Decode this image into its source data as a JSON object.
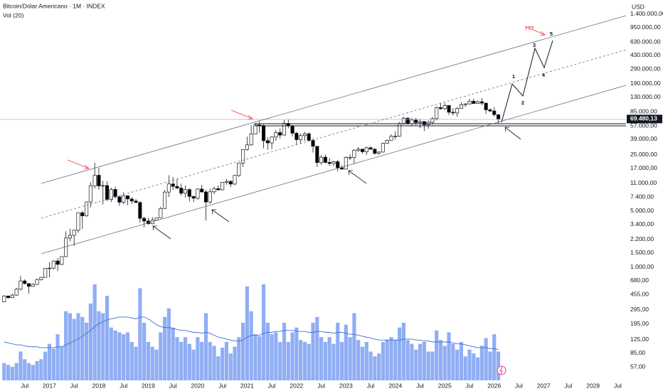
{
  "chart_data": {
    "type": "candlestick",
    "title": "Bitcoin/Dólar Americano · 1M · INDEX",
    "currency": "USD",
    "yscale": "log",
    "ylim": [
      39,
      2100000
    ],
    "yticks": [
      {
        "value": 1400000,
        "label": "1.400.000,00"
      },
      {
        "value": 950000,
        "label": "950.000,00"
      },
      {
        "value": 630000,
        "label": "630.000,00"
      },
      {
        "value": 430000,
        "label": "430.000,00"
      },
      {
        "value": 290000,
        "label": "290.000,00"
      },
      {
        "value": 190000,
        "label": "190.000,00"
      },
      {
        "value": 130000,
        "label": "130.000,00"
      },
      {
        "value": 85000,
        "label": "85.000,00"
      },
      {
        "value": 57000,
        "label": "57.000,00"
      },
      {
        "value": 39000,
        "label": "39.000,00"
      },
      {
        "value": 25000,
        "label": "25.000,00"
      },
      {
        "value": 17000,
        "label": "17.000,00"
      },
      {
        "value": 11000,
        "label": "11.000,00"
      },
      {
        "value": 7400,
        "label": "7.400,00"
      },
      {
        "value": 5000,
        "label": "5.000,00"
      },
      {
        "value": 3400,
        "label": "3.400,00"
      },
      {
        "value": 2200,
        "label": "2.200,00"
      },
      {
        "value": 1500,
        "label": "1.500,00"
      },
      {
        "value": 1000,
        "label": "1.000,00"
      },
      {
        "value": 680,
        "label": "680,00"
      },
      {
        "value": 455,
        "label": "455,00"
      },
      {
        "value": 295,
        "label": "295,00"
      },
      {
        "value": 195,
        "label": "195,00"
      },
      {
        "value": 125,
        "label": "125,00"
      },
      {
        "value": 85,
        "label": "85,00"
      },
      {
        "value": 57,
        "label": "57,00"
      }
    ],
    "xlim": [
      "2016-01",
      "2028-09"
    ],
    "xticks": [
      {
        "value": "2016-07",
        "label": "Jul"
      },
      {
        "value": "2017-01",
        "label": "2017"
      },
      {
        "value": "2017-07",
        "label": "Jul"
      },
      {
        "value": "2018-01",
        "label": "2018"
      },
      {
        "value": "2018-07",
        "label": "Jul"
      },
      {
        "value": "2019-01",
        "label": "2019"
      },
      {
        "value": "2019-07",
        "label": "Jul"
      },
      {
        "value": "2020-01",
        "label": "2020"
      },
      {
        "value": "2020-07",
        "label": "Jul"
      },
      {
        "value": "2021-01",
        "label": "2021"
      },
      {
        "value": "2021-07",
        "label": "Jul"
      },
      {
        "value": "2022-01",
        "label": "2022"
      },
      {
        "value": "2022-07",
        "label": "Jul"
      },
      {
        "value": "2023-01",
        "label": "2023"
      },
      {
        "value": "2023-07",
        "label": "Jul"
      },
      {
        "value": "2024-01",
        "label": "2024"
      },
      {
        "value": "2024-07",
        "label": "Jul"
      },
      {
        "value": "2025-01",
        "label": "2025"
      },
      {
        "value": "2025-07",
        "label": "Jul"
      },
      {
        "value": "2026-01",
        "label": "2026"
      },
      {
        "value": "2026-07",
        "label": "Jul"
      },
      {
        "value": "2027-01",
        "label": "2027"
      },
      {
        "value": "2027-07",
        "label": "Jul"
      },
      {
        "value": "2028-01",
        "label": "2028"
      },
      {
        "value": "2028-07",
        "label": "Jul"
      }
    ],
    "up_color": "#ffffff",
    "down_color": "#000000",
    "x": [
      "2016-02",
      "2016-03",
      "2016-04",
      "2016-05",
      "2016-06",
      "2016-07",
      "2016-08",
      "2016-09",
      "2016-10",
      "2016-11",
      "2016-12",
      "2017-01",
      "2017-02",
      "2017-03",
      "2017-04",
      "2017-05",
      "2017-06",
      "2017-07",
      "2017-08",
      "2017-09",
      "2017-10",
      "2017-11",
      "2017-12",
      "2018-01",
      "2018-02",
      "2018-03",
      "2018-04",
      "2018-05",
      "2018-06",
      "2018-07",
      "2018-08",
      "2018-09",
      "2018-10",
      "2018-11",
      "2018-12",
      "2019-01",
      "2019-02",
      "2019-03",
      "2019-04",
      "2019-05",
      "2019-06",
      "2019-07",
      "2019-08",
      "2019-09",
      "2019-10",
      "2019-11",
      "2019-12",
      "2020-01",
      "2020-02",
      "2020-03",
      "2020-04",
      "2020-05",
      "2020-06",
      "2020-07",
      "2020-08",
      "2020-09",
      "2020-10",
      "2020-11",
      "2020-12",
      "2021-01",
      "2021-02",
      "2021-03",
      "2021-04",
      "2021-05",
      "2021-06",
      "2021-07",
      "2021-08",
      "2021-09",
      "2021-10",
      "2021-11",
      "2021-12",
      "2022-01",
      "2022-02",
      "2022-03",
      "2022-04",
      "2022-05",
      "2022-06",
      "2022-07",
      "2022-08",
      "2022-09",
      "2022-10",
      "2022-11",
      "2022-12",
      "2023-01",
      "2023-02",
      "2023-03",
      "2023-04",
      "2023-05",
      "2023-06",
      "2023-07",
      "2023-08",
      "2023-09",
      "2023-10",
      "2023-11",
      "2023-12",
      "2024-01",
      "2024-02",
      "2024-03",
      "2024-04",
      "2024-05",
      "2024-06",
      "2024-07",
      "2024-08",
      "2024-09",
      "2024-10",
      "2024-11",
      "2024-12",
      "2025-01",
      "2025-02",
      "2025-03",
      "2025-04",
      "2025-05",
      "2025-06",
      "2025-07",
      "2025-08",
      "2025-09",
      "2025-10",
      "2025-11",
      "2025-12",
      "2026-01",
      "2026-02"
    ],
    "ohlc": [
      [
        369,
        448,
        365,
        437
      ],
      [
        437,
        440,
        406,
        416
      ],
      [
        416,
        467,
        414,
        448
      ],
      [
        448,
        552,
        437,
        531
      ],
      [
        531,
        780,
        511,
        673
      ],
      [
        673,
        704,
        605,
        624
      ],
      [
        624,
        626,
        467,
        575
      ],
      [
        575,
        628,
        571,
        609
      ],
      [
        609,
        720,
        603,
        700
      ],
      [
        700,
        757,
        680,
        745
      ],
      [
        745,
        975,
        742,
        964
      ],
      [
        964,
        1150,
        745,
        970
      ],
      [
        970,
        1210,
        930,
        1190
      ],
      [
        1190,
        1290,
        890,
        1080
      ],
      [
        1080,
        1350,
        1060,
        1350
      ],
      [
        1350,
        2790,
        1330,
        2300
      ],
      [
        2300,
        3000,
        2100,
        2480
      ],
      [
        2480,
        2920,
        1830,
        2870
      ],
      [
        2870,
        4750,
        2670,
        4740
      ],
      [
        4740,
        5000,
        2970,
        4340
      ],
      [
        4340,
        6470,
        4230,
        6470
      ],
      [
        6470,
        11400,
        5520,
        10230
      ],
      [
        10230,
        19900,
        9500,
        13880
      ],
      [
        13880,
        17200,
        9200,
        10220
      ],
      [
        10220,
        11800,
        6000,
        10330
      ],
      [
        10330,
        11700,
        6600,
        6930
      ],
      [
        6930,
        9750,
        6450,
        9240
      ],
      [
        9240,
        9990,
        7080,
        7490
      ],
      [
        7490,
        7760,
        5780,
        6400
      ],
      [
        6400,
        8500,
        6070,
        7730
      ],
      [
        7730,
        7760,
        5880,
        7040
      ],
      [
        7040,
        7400,
        6100,
        6630
      ],
      [
        6630,
        7000,
        6200,
        6370
      ],
      [
        6370,
        6580,
        3550,
        4040
      ],
      [
        4040,
        4240,
        3120,
        3740
      ],
      [
        3740,
        4110,
        3350,
        3460
      ],
      [
        3460,
        4200,
        3390,
        3830
      ],
      [
        3830,
        4130,
        3780,
        4110
      ],
      [
        4110,
        5640,
        4090,
        5350
      ],
      [
        5350,
        9090,
        5330,
        8570
      ],
      [
        8570,
        13880,
        7460,
        10820
      ],
      [
        10820,
        13200,
        9090,
        10080
      ],
      [
        10080,
        12330,
        9330,
        9600
      ],
      [
        9600,
        10900,
        7710,
        8290
      ],
      [
        8290,
        10370,
        7300,
        9200
      ],
      [
        9200,
        9510,
        6530,
        7550
      ],
      [
        7550,
        7740,
        6430,
        7190
      ],
      [
        7190,
        9580,
        6870,
        9350
      ],
      [
        9350,
        10500,
        8450,
        8600
      ],
      [
        8600,
        9170,
        3800,
        6440
      ],
      [
        6440,
        9460,
        6150,
        8630
      ],
      [
        8630,
        10070,
        8120,
        9450
      ],
      [
        9450,
        10380,
        8930,
        9140
      ],
      [
        9140,
        11440,
        8990,
        11350
      ],
      [
        11350,
        12470,
        10530,
        11650
      ],
      [
        11650,
        12070,
        9880,
        10780
      ],
      [
        10780,
        14100,
        10430,
        13800
      ],
      [
        13800,
        19860,
        13200,
        19700
      ],
      [
        19700,
        29300,
        17570,
        28990
      ],
      [
        28990,
        41950,
        28130,
        33110
      ],
      [
        33110,
        58350,
        32300,
        45140
      ],
      [
        45140,
        61780,
        45000,
        58790
      ],
      [
        58790,
        64850,
        47040,
        57700
      ],
      [
        57700,
        59600,
        30000,
        37300
      ],
      [
        37300,
        41330,
        28800,
        35040
      ],
      [
        35040,
        42400,
        29280,
        41460
      ],
      [
        41460,
        50500,
        37330,
        47130
      ],
      [
        47130,
        52920,
        39600,
        43820
      ],
      [
        43820,
        67000,
        43290,
        61300
      ],
      [
        61300,
        69000,
        53250,
        57000
      ],
      [
        57000,
        59040,
        42000,
        46300
      ],
      [
        46300,
        47990,
        32900,
        38480
      ],
      [
        38480,
        45800,
        34320,
        43190
      ],
      [
        43190,
        48240,
        37160,
        45540
      ],
      [
        45540,
        47440,
        37700,
        37640
      ],
      [
        37640,
        40000,
        26700,
        31800
      ],
      [
        31800,
        31990,
        17600,
        19930
      ],
      [
        19930,
        24670,
        18780,
        23300
      ],
      [
        23300,
        25200,
        19550,
        20050
      ],
      [
        20050,
        22800,
        18150,
        19430
      ],
      [
        19430,
        20990,
        18190,
        20490
      ],
      [
        20490,
        21470,
        15480,
        17170
      ],
      [
        17170,
        18400,
        16260,
        16540
      ],
      [
        16540,
        23960,
        16500,
        23140
      ],
      [
        23140,
        25250,
        21400,
        23150
      ],
      [
        23150,
        29200,
        19550,
        28480
      ],
      [
        28480,
        31000,
        26940,
        29250
      ],
      [
        29250,
        29820,
        25810,
        27220
      ],
      [
        27220,
        31430,
        24800,
        30480
      ],
      [
        30480,
        31800,
        28860,
        29230
      ],
      [
        29230,
        30240,
        25170,
        25940
      ],
      [
        25940,
        27480,
        24900,
        26970
      ],
      [
        26970,
        35200,
        26560,
        34650
      ],
      [
        34650,
        38430,
        34100,
        37720
      ],
      [
        37720,
        44700,
        37620,
        42280
      ],
      [
        42280,
        48970,
        38550,
        42580
      ],
      [
        42580,
        63900,
        41880,
        61130
      ],
      [
        61130,
        73800,
        59000,
        71280
      ],
      [
        71280,
        72770,
        59190,
        60670
      ],
      [
        60670,
        71980,
        56550,
        67490
      ],
      [
        67490,
        71950,
        58400,
        62680
      ],
      [
        62680,
        70000,
        53500,
        64620
      ],
      [
        64620,
        65100,
        49050,
        58970
      ],
      [
        58970,
        66500,
        52550,
        63330
      ],
      [
        63330,
        73600,
        58900,
        70220
      ],
      [
        70220,
        99800,
        66800,
        96400
      ],
      [
        96400,
        108300,
        90500,
        93430
      ],
      [
        93430,
        109600,
        89200,
        102400
      ],
      [
        102400,
        102500,
        78200,
        84350
      ],
      [
        84350,
        95000,
        76600,
        82550
      ],
      [
        82550,
        97900,
        74400,
        94200
      ],
      [
        94200,
        111900,
        93300,
        104600
      ],
      [
        104600,
        110500,
        98200,
        107100
      ],
      [
        107100,
        123200,
        105100,
        115800
      ],
      [
        115800,
        124500,
        107300,
        108200
      ],
      [
        108200,
        117900,
        107300,
        114000
      ],
      [
        114000,
        126200,
        103500,
        109500
      ],
      [
        109500,
        111000,
        80600,
        90400
      ],
      [
        90400,
        94500,
        84400,
        87500
      ],
      [
        87500,
        97900,
        74500,
        78700
      ],
      [
        78700,
        79300,
        60000,
        69480.13
      ]
    ],
    "last_price": {
      "value": 69480.13,
      "label": "69.480,13"
    },
    "volume": {
      "name": "Vol (20)",
      "color": "#90aef4",
      "ma_color": "#3f6fd8",
      "values": [
        18,
        16,
        14,
        18,
        30,
        22,
        18,
        16,
        20,
        22,
        30,
        38,
        33,
        48,
        35,
        72,
        70,
        64,
        70,
        66,
        60,
        80,
        100,
        72,
        70,
        88,
        55,
        52,
        50,
        48,
        50,
        40,
        35,
        96,
        60,
        40,
        35,
        32,
        50,
        66,
        75,
        55,
        45,
        40,
        45,
        38,
        32,
        45,
        40,
        70,
        40,
        36,
        25,
        34,
        40,
        28,
        35,
        45,
        60,
        98,
        72,
        48,
        46,
        100,
        60,
        48,
        50,
        40,
        60,
        40,
        50,
        55,
        42,
        40,
        38,
        60,
        66,
        45,
        40,
        45,
        38,
        60,
        40,
        58,
        45,
        70,
        42,
        35,
        40,
        30,
        25,
        28,
        40,
        42,
        45,
        42,
        55,
        60,
        42,
        38,
        32,
        38,
        40,
        30,
        30,
        52,
        42,
        36,
        50,
        38,
        32,
        40,
        25,
        32,
        28,
        24,
        36,
        44,
        30,
        48,
        30
      ],
      "ma": [
        40,
        39,
        38,
        37,
        37,
        36,
        35,
        35,
        35,
        34,
        34,
        34,
        34,
        35,
        35,
        37,
        39,
        41,
        43,
        46,
        49,
        52,
        56,
        59,
        61,
        63,
        64,
        65,
        66,
        66,
        66,
        65,
        64,
        66,
        66,
        64,
        61,
        58,
        56,
        55,
        55,
        54,
        53,
        52,
        52,
        51,
        50,
        50,
        49,
        50,
        49,
        47,
        45,
        44,
        43,
        42,
        41,
        41,
        42,
        45,
        47,
        47,
        47,
        49,
        50,
        50,
        51,
        51,
        52,
        52,
        52,
        51,
        51,
        51,
        50,
        50,
        51,
        51,
        50,
        50,
        49,
        50,
        50,
        49,
        48,
        48,
        47,
        46,
        45,
        44,
        43,
        42,
        42,
        42,
        42,
        42,
        42,
        43,
        43,
        43,
        42,
        42,
        41,
        41,
        40,
        40,
        40,
        40,
        40,
        39,
        38,
        38,
        37,
        36,
        35,
        34,
        34,
        34,
        33,
        33,
        32
      ]
    },
    "annotations": [
      "1",
      "2",
      "3",
      "4",
      "5",
      "???"
    ]
  }
}
